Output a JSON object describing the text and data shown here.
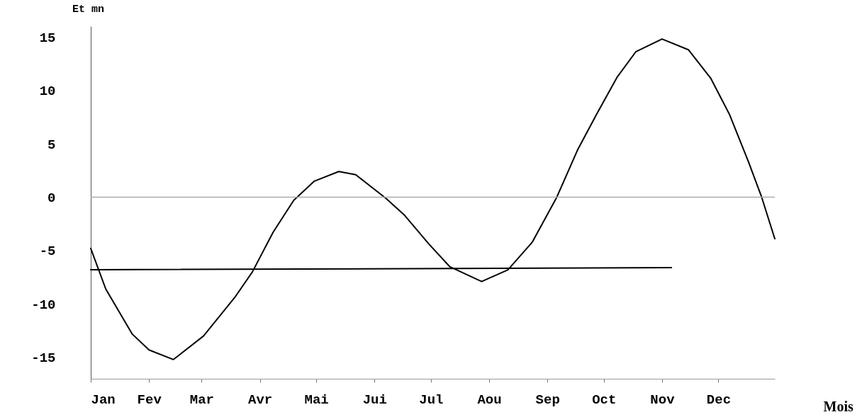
{
  "chart_data": {
    "type": "line",
    "ylabel": "Et mn",
    "xlabel": "Mois",
    "xlim": [
      "--01-01",
      "--12-31"
    ],
    "ylim": [
      -17,
      16
    ],
    "xticks": [
      {
        "value": "--01-01",
        "label": "Jan"
      },
      {
        "value": "--02-01",
        "label": "Fev"
      },
      {
        "value": "--03-01",
        "label": "Mar"
      },
      {
        "value": "--04-01",
        "label": "Avr"
      },
      {
        "value": "--05-01",
        "label": "Mai"
      },
      {
        "value": "--06-01",
        "label": "Jui"
      },
      {
        "value": "--07-01",
        "label": "Jul"
      },
      {
        "value": "--08-01",
        "label": "Aou"
      },
      {
        "value": "--09-01",
        "label": "Sep"
      },
      {
        "value": "--10-01",
        "label": "Oct"
      },
      {
        "value": "--11-01",
        "label": "Nov"
      },
      {
        "value": "--12-01",
        "label": "Dec"
      }
    ],
    "yticks": [
      -15,
      -10,
      -5,
      0,
      5,
      10,
      15
    ],
    "grid": false,
    "marker": "none",
    "line_style": "solid",
    "ref_lines": [
      {
        "axis": "y",
        "value": 0,
        "color": "#aaaaaa"
      }
    ],
    "series": [
      {
        "color": "#000000",
        "x": [
          "--01-01",
          "--01-09",
          "--01-23",
          "--02-01",
          "--02-14",
          "--03-02",
          "--03-19",
          "--03-28",
          "--04-08",
          "--04-19",
          "--04-30",
          "--05-13",
          "--05-22",
          "--06-07",
          "--06-17",
          "--06-30",
          "--07-11",
          "--07-28",
          "--08-11",
          "--08-24",
          "--09-06",
          "--09-17",
          "--09-27",
          "--10-08",
          "--10-18",
          "--11-01",
          "--11-15",
          "--11-27",
          "--12-07",
          "--12-17",
          "--12-24",
          "--12-31"
        ],
        "values": [
          -4.8,
          -8.6,
          -12.8,
          -14.3,
          -15.2,
          -13.0,
          -9.3,
          -7.0,
          -3.3,
          -0.3,
          1.5,
          2.4,
          2.1,
          -0.1,
          -1.7,
          -4.4,
          -6.5,
          -7.9,
          -6.8,
          -4.2,
          0.0,
          4.4,
          7.7,
          11.2,
          13.6,
          14.8,
          13.8,
          11.1,
          7.7,
          3.3,
          0.0,
          -3.9
        ]
      },
      {
        "type": "line",
        "color": "#000000",
        "x": [
          "--01-01",
          "--11-06"
        ],
        "values": [
          -6.8,
          -6.6
        ]
      }
    ]
  }
}
